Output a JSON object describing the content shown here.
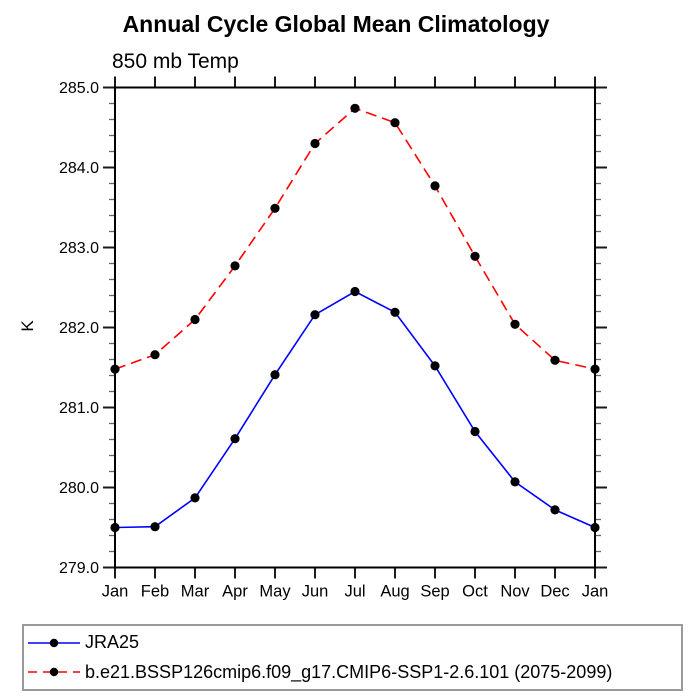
{
  "page": {
    "title": "Annual Cycle Global Mean Climatology",
    "subtitle": "850 mb Temp",
    "ylabel": "K"
  },
  "legend": {
    "items": [
      {
        "label": "JRA25",
        "color": "#0000ff",
        "style": "solid"
      },
      {
        "label": "b.e21.BSSP126cmip6.f09_g17.CMIP6-SSP1-2.6.101 (2075-2099)",
        "color": "#ff0000",
        "style": "dashed"
      }
    ]
  },
  "chart_data": {
    "type": "line",
    "title": "Annual Cycle Global Mean Climatology",
    "subtitle": "850 mb Temp",
    "xlabel": "",
    "ylabel": "K",
    "categories": [
      "Jan",
      "Feb",
      "Mar",
      "Apr",
      "May",
      "Jun",
      "Jul",
      "Aug",
      "Sep",
      "Oct",
      "Nov",
      "Dec",
      "Jan"
    ],
    "ylim": [
      279.0,
      285.0
    ],
    "ytick_interval": 1.0,
    "yminor_interval": 0.2,
    "ytick_labels": [
      "279.0",
      "280.0",
      "281.0",
      "282.0",
      "283.0",
      "284.0",
      "285.0"
    ],
    "grid": false,
    "legend_position": "bottom-left-box",
    "marker": "filled-circle",
    "marker_color": "#000000",
    "series": [
      {
        "name": "JRA25",
        "color": "#0000ff",
        "line_style": "solid",
        "values": [
          279.5,
          279.51,
          279.87,
          280.61,
          281.41,
          282.16,
          282.45,
          282.19,
          281.52,
          280.7,
          280.07,
          279.72,
          279.5
        ]
      },
      {
        "name": "b.e21.BSSP126cmip6.f09_g17.CMIP6-SSP1-2.6.101 (2075-2099)",
        "color": "#ff0000",
        "line_style": "dashed",
        "values": [
          281.48,
          281.66,
          282.1,
          282.77,
          283.49,
          284.3,
          284.74,
          284.56,
          283.77,
          282.89,
          282.04,
          281.59,
          281.48
        ]
      }
    ]
  }
}
